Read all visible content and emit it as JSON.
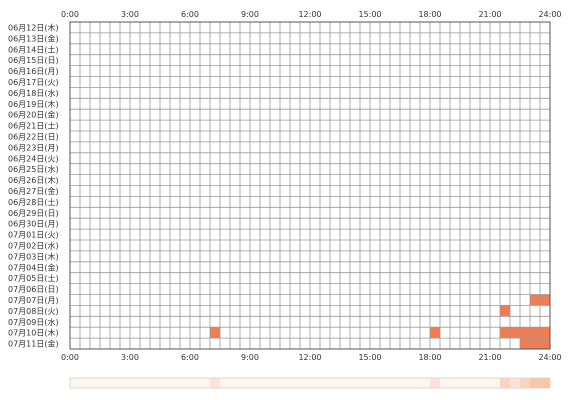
{
  "chart_data": {
    "type": "heatmap",
    "title": "",
    "xlabel": "",
    "ylabel": "",
    "x_ticks": [
      "0:00",
      "3:00",
      "6:00",
      "9:00",
      "12:00",
      "15:00",
      "18:00",
      "21:00",
      "24:00"
    ],
    "x_range_hours": [
      0,
      24
    ],
    "cell_minutes": 30,
    "grid": true,
    "dates": [
      "06月12日(木)",
      "06月13日(金)",
      "06月14日(土)",
      "06月15日(日)",
      "06月16日(月)",
      "06月17日(火)",
      "06月18日(水)",
      "06月19日(木)",
      "06月20日(金)",
      "06月21日(土)",
      "06月22日(日)",
      "06月23日(月)",
      "06月24日(火)",
      "06月25日(水)",
      "06月26日(木)",
      "06月27日(金)",
      "06月28日(土)",
      "06月29日(日)",
      "06月30日(月)",
      "07月01日(火)",
      "07月02日(水)",
      "07月03日(木)",
      "07月04日(金)",
      "07月05日(土)",
      "07月06日(日)",
      "07月07日(月)",
      "07月08日(火)",
      "07月09日(水)",
      "07月10日(木)",
      "07月11日(金)"
    ],
    "active_cells": [
      {
        "date": "07月07日(月)",
        "start": 23.0,
        "end": 24.0
      },
      {
        "date": "07月08日(火)",
        "start": 21.5,
        "end": 22.0
      },
      {
        "date": "07月10日(木)",
        "start": 7.0,
        "end": 7.5
      },
      {
        "date": "07月10日(木)",
        "start": 18.0,
        "end": 18.5
      },
      {
        "date": "07月10日(木)",
        "start": 21.5,
        "end": 24.0
      },
      {
        "date": "07月11日(金)",
        "start": 22.5,
        "end": 23.5
      },
      {
        "date": "07月11日(金)",
        "start": 23.5,
        "end": 24.0
      }
    ],
    "summary_strip": {
      "highlights": [
        {
          "start": 7.0,
          "end": 7.5,
          "intensity": 1
        },
        {
          "start": 18.0,
          "end": 18.5,
          "intensity": 1
        },
        {
          "start": 21.5,
          "end": 22.0,
          "intensity": 2
        },
        {
          "start": 22.0,
          "end": 22.5,
          "intensity": 1
        },
        {
          "start": 22.5,
          "end": 23.0,
          "intensity": 2
        },
        {
          "start": 23.0,
          "end": 23.5,
          "intensity": 3
        },
        {
          "start": 23.5,
          "end": 24.0,
          "intensity": 3
        }
      ]
    },
    "colors": {
      "cell": "#f27c52",
      "grid": "#9a9a9a",
      "border": "#555555",
      "text": "#333333",
      "strip_base": "#fdf5f0",
      "strip_border": "#d8d8d8",
      "strip_levels": [
        "#fdf5f0",
        "#fde3d4",
        "#fcd4bd",
        "#fbc5a6"
      ]
    }
  }
}
